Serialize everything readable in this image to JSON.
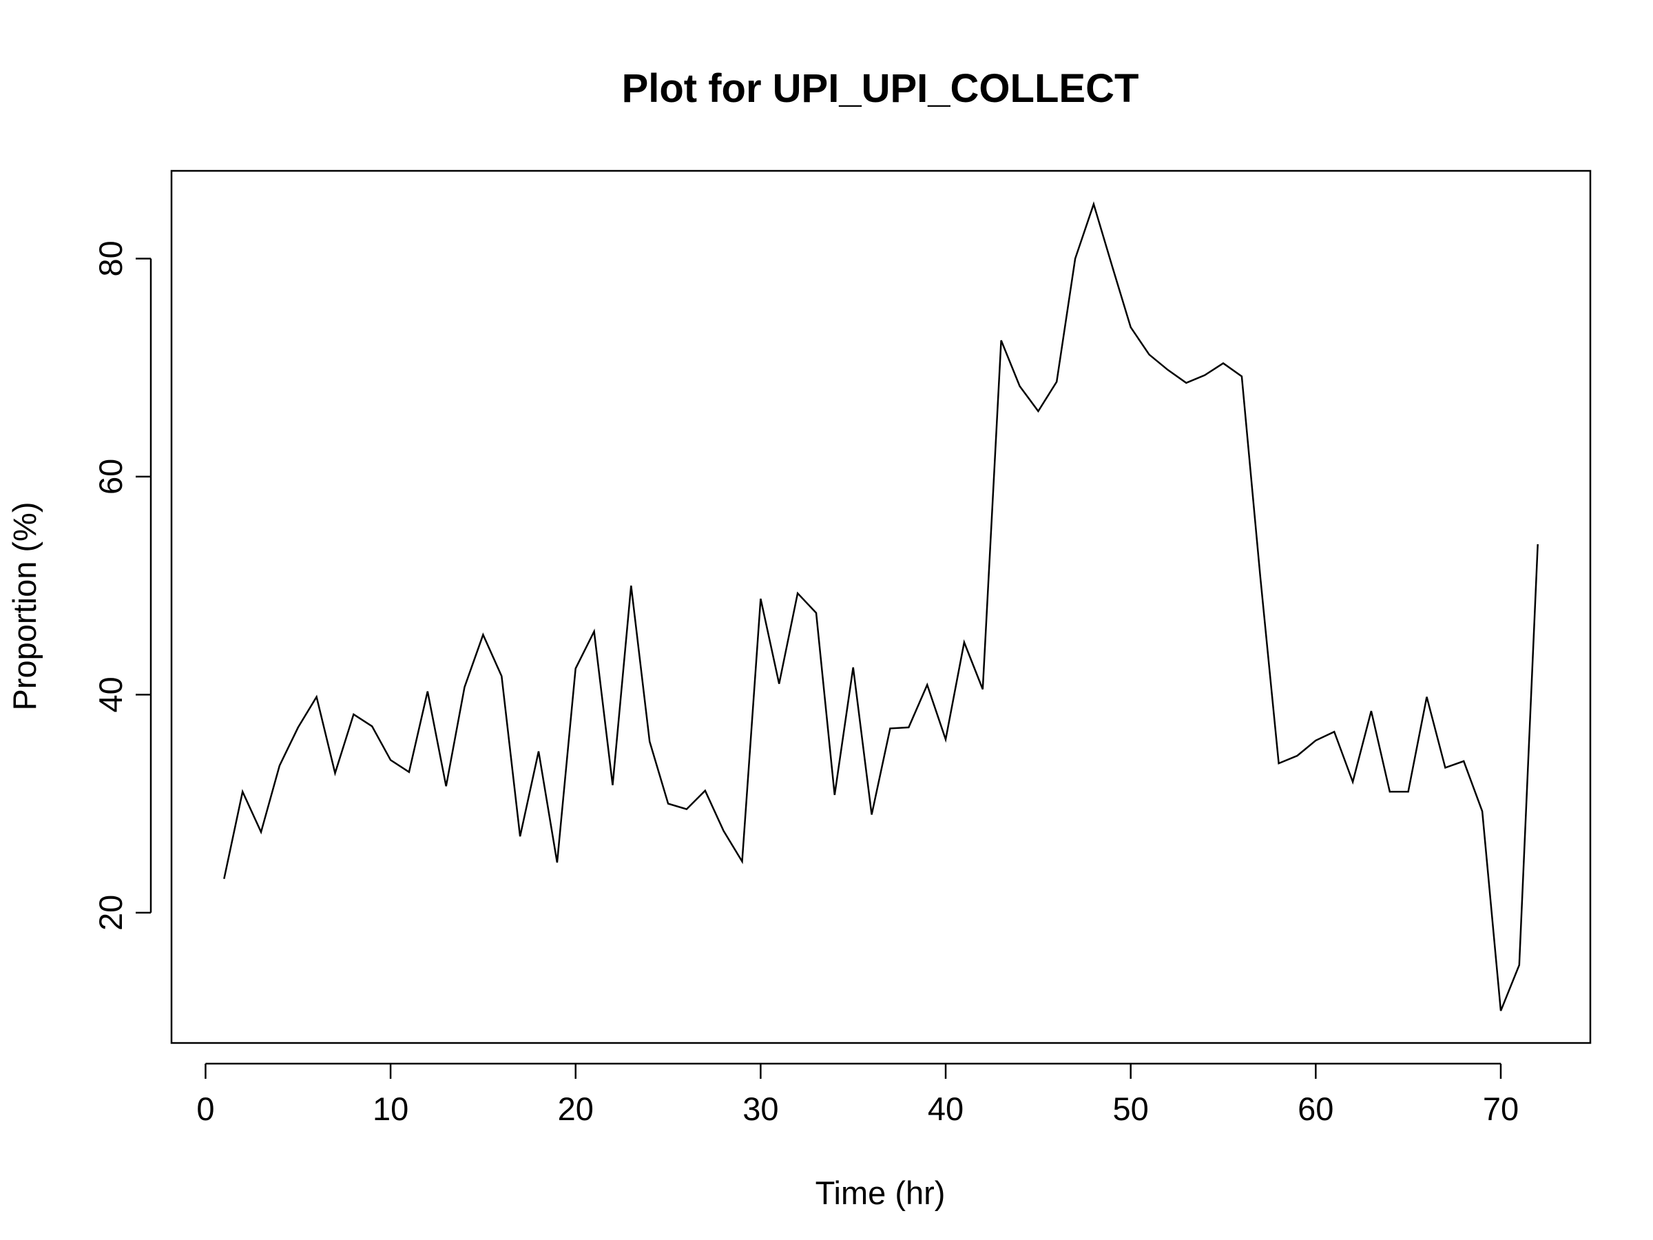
{
  "chart_data": {
    "type": "line",
    "title": "Plot for UPI_UPI_COLLECT",
    "xlabel": "Time (hr)",
    "ylabel": "Proportion (%)",
    "xlim": [
      -1.84,
      74.84
    ],
    "ylim": [
      8.05,
      88.05
    ],
    "xticks": [
      0,
      10,
      20,
      30,
      40,
      50,
      60,
      70
    ],
    "yticks": [
      20,
      40,
      60,
      80
    ],
    "grid": false,
    "line_color": "#000000",
    "series": [
      {
        "x": [
          1,
          2,
          3,
          4,
          5,
          6,
          7,
          8,
          9,
          10,
          11,
          12,
          13,
          14,
          15,
          16,
          17,
          18,
          19,
          20,
          21,
          22,
          23,
          24,
          25,
          26,
          27,
          28,
          29,
          30,
          31,
          32,
          33,
          34,
          35,
          36,
          37,
          38,
          39,
          40,
          41,
          42,
          43,
          44,
          45,
          46,
          47,
          48,
          49,
          50,
          51,
          52,
          53,
          54,
          55,
          56,
          57,
          58,
          59,
          60,
          61,
          62,
          63,
          64,
          65,
          66,
          67,
          68,
          69,
          70,
          71,
          72
        ],
        "values": [
          23.1,
          31.1,
          27.4,
          33.5,
          37.0,
          39.8,
          32.8,
          38.2,
          37.1,
          34.0,
          32.9,
          40.3,
          31.6,
          40.7,
          45.5,
          41.7,
          27.0,
          34.8,
          24.6,
          42.4,
          45.8,
          31.7,
          50.0,
          35.7,
          30.0,
          29.5,
          31.2,
          27.5,
          24.7,
          48.8,
          41.0,
          49.3,
          47.5,
          30.8,
          42.5,
          29.0,
          36.9,
          37.0,
          40.9,
          35.9,
          44.8,
          40.5,
          72.5,
          68.3,
          66.0,
          68.7,
          80.0,
          85.0,
          79.3,
          73.7,
          71.2,
          69.8,
          68.6,
          69.3,
          70.4,
          69.2,
          50.9,
          33.7,
          34.4,
          35.8,
          36.6,
          32.0,
          38.5,
          31.1,
          31.1,
          39.8,
          33.3,
          33.9,
          29.3,
          11.0,
          15.2,
          53.8
        ]
      }
    ]
  }
}
